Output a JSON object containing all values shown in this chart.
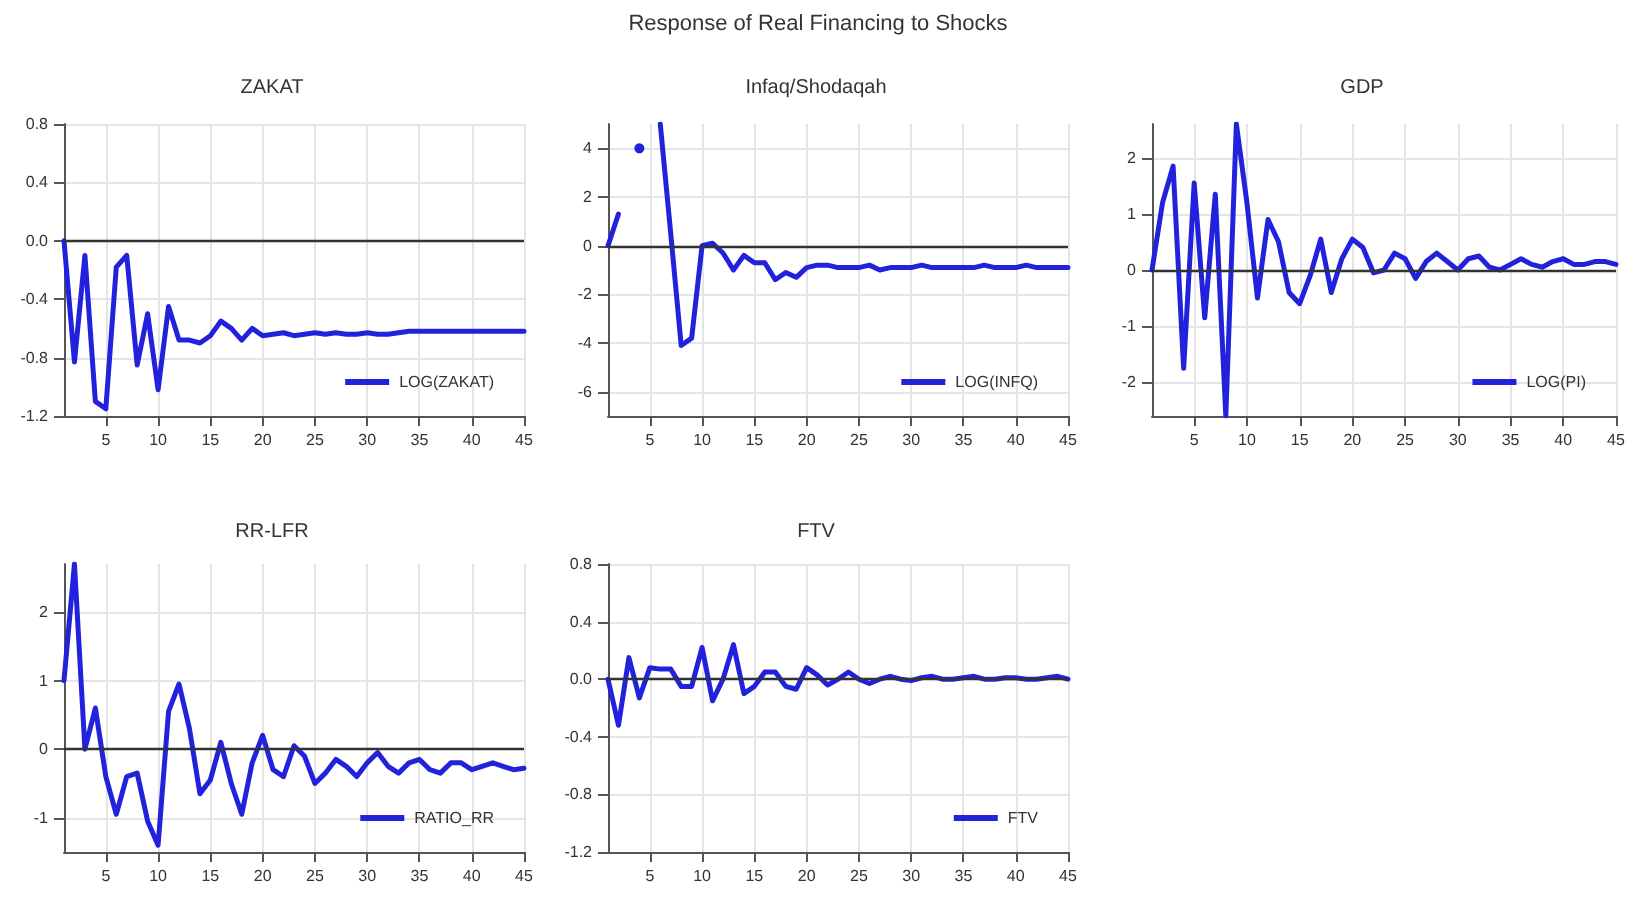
{
  "chart_data": [
    {
      "type": "line",
      "title": "ZAKAT",
      "annotations": [
        "Response of Real Financing to Shocks"
      ],
      "x": [
        1,
        2,
        3,
        4,
        5,
        6,
        7,
        8,
        9,
        10,
        11,
        12,
        13,
        14,
        15,
        16,
        17,
        18,
        19,
        20,
        21,
        22,
        23,
        24,
        25,
        26,
        27,
        28,
        29,
        30,
        31,
        32,
        33,
        34,
        35,
        36,
        37,
        38,
        39,
        40,
        41,
        42,
        43,
        44,
        45
      ],
      "series": [
        {
          "name": "LOG(ZAKAT)",
          "color": "#2222dd",
          "values": [
            0,
            -0.83,
            -0.1,
            -1.1,
            -1.15,
            -0.18,
            -0.1,
            -0.85,
            -0.5,
            -1.02,
            -0.45,
            -0.68,
            -0.68,
            -0.7,
            -0.65,
            -0.55,
            -0.6,
            -0.68,
            -0.6,
            -0.65,
            -0.64,
            -0.63,
            -0.65,
            -0.64,
            -0.63,
            -0.64,
            -0.63,
            -0.64,
            -0.64,
            -0.63,
            -0.64,
            -0.64,
            -0.63,
            -0.62,
            -0.62,
            -0.62,
            -0.62,
            -0.62,
            -0.62,
            -0.62,
            -0.62,
            -0.62,
            -0.62,
            -0.62,
            -0.62
          ]
        }
      ],
      "xlim": [
        1,
        45
      ],
      "xticks": [
        5,
        10,
        15,
        20,
        25,
        30,
        35,
        40,
        45
      ],
      "ylim": [
        -1.2,
        0.8
      ],
      "yticks": [
        {
          "value": -1.2,
          "label": "-1.2"
        },
        {
          "value": -0.8,
          "label": "-0.8"
        },
        {
          "value": -0.4,
          "label": "-0.4"
        },
        {
          "value": 0,
          "label": "0.0"
        },
        {
          "value": 0.4,
          "label": "0.4"
        },
        {
          "value": 0.8,
          "label": "0.8"
        }
      ],
      "ref_lines": [
        {
          "axis": "y",
          "value": 0,
          "color": "#333333"
        }
      ],
      "grid": true,
      "legend": "bottom right",
      "marker": "none",
      "line_style": "solid"
    },
    {
      "type": "line",
      "title": "Infaq/Shodaqah",
      "x": [
        1,
        2,
        3,
        4,
        5,
        6,
        7,
        8,
        9,
        10,
        11,
        12,
        13,
        14,
        15,
        16,
        17,
        18,
        19,
        20,
        21,
        22,
        23,
        24,
        25,
        26,
        27,
        28,
        29,
        30,
        31,
        32,
        33,
        34,
        35,
        36,
        37,
        38,
        39,
        40,
        41,
        42,
        43,
        44,
        45
      ],
      "series": [
        {
          "name": "LOG(INFQ)",
          "color": "#2222dd",
          "values": [
            0,
            1.3,
            null,
            4,
            null,
            5,
            0.5,
            -4.1,
            -3.8,
            0,
            0.1,
            -0.3,
            -1,
            -0.4,
            -0.7,
            -0.7,
            -1.4,
            -1.1,
            -1.3,
            -0.9,
            -0.8,
            -0.8,
            -0.9,
            -0.9,
            -0.9,
            -0.8,
            -1,
            -0.9,
            -0.9,
            -0.9,
            -0.8,
            -0.9,
            -0.9,
            -0.9,
            -0.9,
            -0.9,
            -0.8,
            -0.9,
            -0.9,
            -0.9,
            -0.8,
            -0.9,
            -0.9,
            -0.9,
            -0.9
          ]
        }
      ],
      "xlim": [
        1,
        45
      ],
      "xticks": [
        5,
        10,
        15,
        20,
        25,
        30,
        35,
        40,
        45
      ],
      "ylim": [
        -7,
        5
      ],
      "yticks": [
        -6,
        -4,
        -2,
        0,
        2,
        4
      ],
      "ref_lines": [
        {
          "axis": "y",
          "value": 0,
          "color": "#333333"
        }
      ],
      "grid": true,
      "legend": "bottom right",
      "marker": "none",
      "line_style": "solid"
    },
    {
      "type": "line",
      "title": "GDP",
      "x": [
        1,
        2,
        3,
        4,
        5,
        6,
        7,
        8,
        9,
        10,
        11,
        12,
        13,
        14,
        15,
        16,
        17,
        18,
        19,
        20,
        21,
        22,
        23,
        24,
        25,
        26,
        27,
        28,
        29,
        30,
        31,
        32,
        33,
        34,
        35,
        36,
        37,
        38,
        39,
        40,
        41,
        42,
        43,
        44,
        45
      ],
      "series": [
        {
          "name": "LOG(PI)",
          "color": "#2222dd",
          "values": [
            0,
            1.2,
            1.85,
            -1.75,
            1.55,
            -0.85,
            1.35,
            -2.6,
            2.6,
            1.2,
            -0.5,
            0.9,
            0.5,
            -0.4,
            -0.6,
            -0.1,
            0.55,
            -0.4,
            0.2,
            0.55,
            0.4,
            -0.05,
            0,
            0.3,
            0.2,
            -0.15,
            0.15,
            0.3,
            0.15,
            0,
            0.2,
            0.25,
            0.05,
            0,
            0.1,
            0.2,
            0.1,
            0.05,
            0.15,
            0.2,
            0.1,
            0.1,
            0.15,
            0.15,
            0.1
          ]
        }
      ],
      "xlim": [
        1,
        45
      ],
      "xticks": [
        5,
        10,
        15,
        20,
        25,
        30,
        35,
        40,
        45
      ],
      "ylim": [
        -2.6,
        2.6
      ],
      "yticks": [
        -2,
        -1,
        0,
        1,
        2
      ],
      "ref_lines": [
        {
          "axis": "y",
          "value": 0,
          "color": "#333333"
        }
      ],
      "grid": true,
      "legend": "bottom right",
      "marker": "none",
      "line_style": "solid"
    },
    {
      "type": "line",
      "title": "RR-LFR",
      "x": [
        1,
        2,
        3,
        4,
        5,
        6,
        7,
        8,
        9,
        10,
        11,
        12,
        13,
        14,
        15,
        16,
        17,
        18,
        19,
        20,
        21,
        22,
        23,
        24,
        25,
        26,
        27,
        28,
        29,
        30,
        31,
        32,
        33,
        34,
        35,
        36,
        37,
        38,
        39,
        40,
        41,
        42,
        43,
        44,
        45
      ],
      "series": [
        {
          "name": "RATIO_RR",
          "color": "#2222dd",
          "values": [
            1,
            2.7,
            0,
            0.6,
            -0.4,
            -0.95,
            -0.4,
            -0.35,
            -1.05,
            -1.4,
            0.55,
            0.95,
            0.3,
            -0.65,
            -0.45,
            0.1,
            -0.5,
            -0.95,
            -0.2,
            0.2,
            -0.3,
            -0.4,
            0.05,
            -0.1,
            -0.5,
            -0.35,
            -0.15,
            -0.25,
            -0.4,
            -0.2,
            -0.05,
            -0.25,
            -0.35,
            -0.2,
            -0.15,
            -0.3,
            -0.35,
            -0.2,
            -0.2,
            -0.3,
            -0.25,
            -0.2,
            -0.25,
            -0.3,
            -0.28
          ]
        }
      ],
      "xlim": [
        1,
        45
      ],
      "xticks": [
        5,
        10,
        15,
        20,
        25,
        30,
        35,
        40,
        45
      ],
      "ylim": [
        -1.5,
        2.7
      ],
      "yticks": [
        -1,
        0,
        1,
        2
      ],
      "ref_lines": [
        {
          "axis": "y",
          "value": 0,
          "color": "#333333"
        }
      ],
      "grid": true,
      "legend": "bottom right",
      "marker": "none",
      "line_style": "solid"
    },
    {
      "type": "line",
      "title": "FTV",
      "x": [
        1,
        2,
        3,
        4,
        5,
        6,
        7,
        8,
        9,
        10,
        11,
        12,
        13,
        14,
        15,
        16,
        17,
        18,
        19,
        20,
        21,
        22,
        23,
        24,
        25,
        26,
        27,
        28,
        29,
        30,
        31,
        32,
        33,
        34,
        35,
        36,
        37,
        38,
        39,
        40,
        41,
        42,
        43,
        44,
        45
      ],
      "series": [
        {
          "name": "FTV",
          "color": "#2222dd",
          "values": [
            0,
            -0.32,
            0.15,
            -0.13,
            0.08,
            0.07,
            0.07,
            -0.05,
            -0.05,
            0.22,
            -0.15,
            0,
            0.24,
            -0.1,
            -0.05,
            0.05,
            0.05,
            -0.05,
            -0.07,
            0.08,
            0.03,
            -0.04,
            0,
            0.05,
            0,
            -0.03,
            0,
            0.02,
            0,
            -0.01,
            0.01,
            0.02,
            0,
            0,
            0.01,
            0.02,
            0,
            0,
            0.01,
            0.01,
            0,
            0,
            0.01,
            0.02,
            0
          ]
        }
      ],
      "xlim": [
        1,
        45
      ],
      "xticks": [
        5,
        10,
        15,
        20,
        25,
        30,
        35,
        40,
        45
      ],
      "ylim": [
        -1.2,
        0.8
      ],
      "yticks": [
        {
          "value": -1.2,
          "label": "-1.2"
        },
        {
          "value": -0.8,
          "label": "-0.8"
        },
        {
          "value": -0.4,
          "label": "-0.4"
        },
        {
          "value": 0,
          "label": "0.0"
        },
        {
          "value": 0.4,
          "label": "0.4"
        },
        {
          "value": 0.8,
          "label": "0.8"
        }
      ],
      "ref_lines": [
        {
          "axis": "y",
          "value": 0,
          "color": "#333333"
        }
      ],
      "grid": true,
      "legend": "bottom right",
      "marker": "none",
      "line_style": "solid"
    }
  ]
}
